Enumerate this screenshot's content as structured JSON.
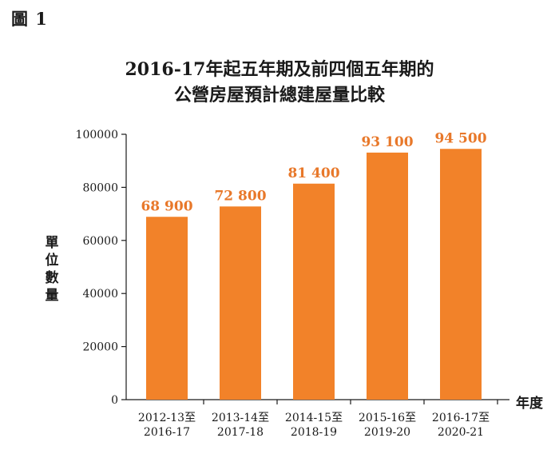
{
  "figure_label": "圖 1",
  "colors": {
    "bar": "#F28229",
    "value_label": "#E8782A",
    "axis": "#1a1a1a"
  },
  "chart_data": {
    "type": "bar",
    "title_line1": "2016-17年起五年期及前四個五年期的",
    "title_line2": "公營房屋預計總建屋量比較",
    "xlabel": "年度",
    "ylabel": "單位數量",
    "ylim": [
      0,
      100000
    ],
    "yticks": [
      0,
      20000,
      40000,
      60000,
      80000,
      100000
    ],
    "ytick_labels": [
      "0",
      "20000",
      "40000",
      "60000",
      "80000",
      "100000"
    ],
    "categories": [
      [
        "2012-13至",
        "2016-17"
      ],
      [
        "2013-14至",
        "2017-18"
      ],
      [
        "2014-15至",
        "2018-19"
      ],
      [
        "2015-16至",
        "2019-20"
      ],
      [
        "2016-17至",
        "2020-21"
      ]
    ],
    "values": [
      68900,
      72800,
      81400,
      93100,
      94500
    ],
    "value_labels": [
      "68 900",
      "72 800",
      "81 400",
      "93 100",
      "94 500"
    ],
    "grid": false,
    "legend": "none"
  }
}
